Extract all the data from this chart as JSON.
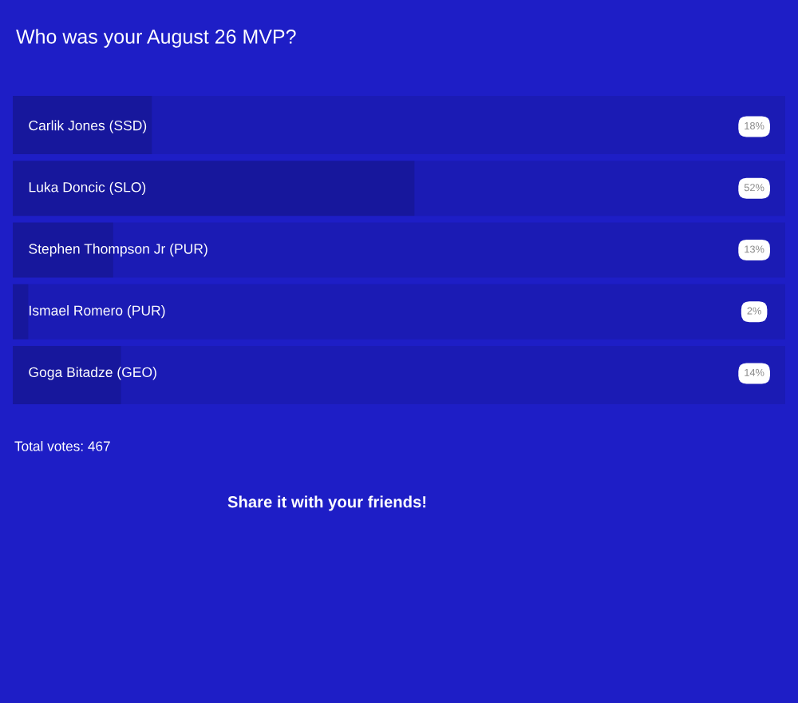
{
  "chart_data": {
    "type": "bar",
    "orientation": "horizontal",
    "title": "Who was your August 26 MVP?",
    "categories": [
      "Carlik Jones (SSD)",
      "Luka Doncic (SLO)",
      "Stephen Thompson Jr (PUR)",
      "Ismael Romero (PUR)",
      "Goga Bitadze (GEO)"
    ],
    "values": [
      18,
      52,
      13,
      2,
      14
    ],
    "value_labels": [
      "18%",
      "52%",
      "13%",
      "2%",
      "14%"
    ],
    "color": "#17179c",
    "xlim": [
      0,
      100
    ],
    "annotations": [
      "Total votes: 467",
      "Share it with your friends!"
    ]
  }
}
